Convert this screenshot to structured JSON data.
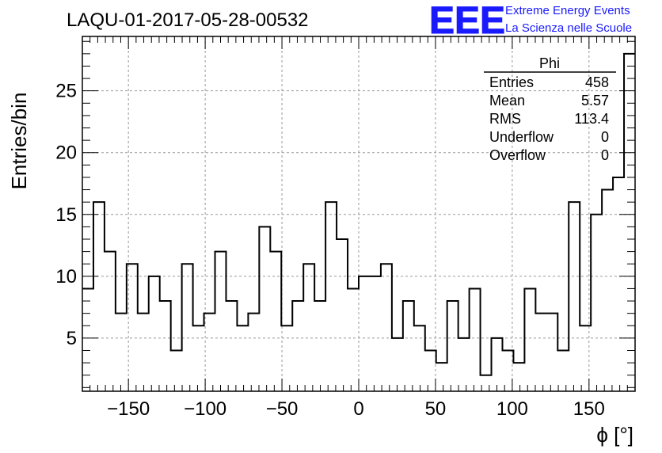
{
  "header": {
    "run_title": "LAQU-01-2017-05-28-00532",
    "logo_mark": "EEE",
    "logo_line1": "Extreme Energy Events",
    "logo_line2": "La Scienza nelle Scuole",
    "logo_color": "#1a1aff"
  },
  "stats_box": {
    "title": "Phi",
    "rows": [
      {
        "label": "Entries",
        "value": "458"
      },
      {
        "label": "Mean",
        "value": "5.57"
      },
      {
        "label": "RMS",
        "value": "113.4"
      },
      {
        "label": "Underflow",
        "value": "0"
      },
      {
        "label": "Overflow",
        "value": "0"
      }
    ]
  },
  "chart_data": {
    "type": "bar",
    "style": "step-histogram",
    "title": "LAQU-01-2017-05-28-00532",
    "xlabel": "ϕ [°]",
    "ylabel": "Entries/bin",
    "xlim": [
      -180,
      180
    ],
    "ylim": [
      0.7,
      29.4
    ],
    "bin_width": 7.2,
    "x_ticks": [
      -150,
      -100,
      -50,
      0,
      50,
      100,
      150
    ],
    "x_tick_labels": [
      "−150",
      "−100",
      "−50",
      "0",
      "50",
      "100",
      "150"
    ],
    "y_ticks": [
      5,
      10,
      15,
      20,
      25
    ],
    "y_tick_labels": [
      "5",
      "10",
      "15",
      "20",
      "25"
    ],
    "grid": true,
    "line_color": "#000000",
    "bin_edges_start": -180,
    "values": [
      9,
      16,
      12,
      7,
      11,
      7,
      10,
      8,
      4,
      11,
      6,
      7,
      12,
      8,
      6,
      7,
      14,
      12,
      6,
      8,
      11,
      8,
      16,
      13,
      9,
      10,
      10,
      11,
      5,
      8,
      6,
      4,
      3,
      8,
      5,
      9,
      2,
      5,
      4,
      3,
      9,
      7,
      7,
      4,
      16,
      6,
      15,
      17,
      18,
      28
    ]
  }
}
